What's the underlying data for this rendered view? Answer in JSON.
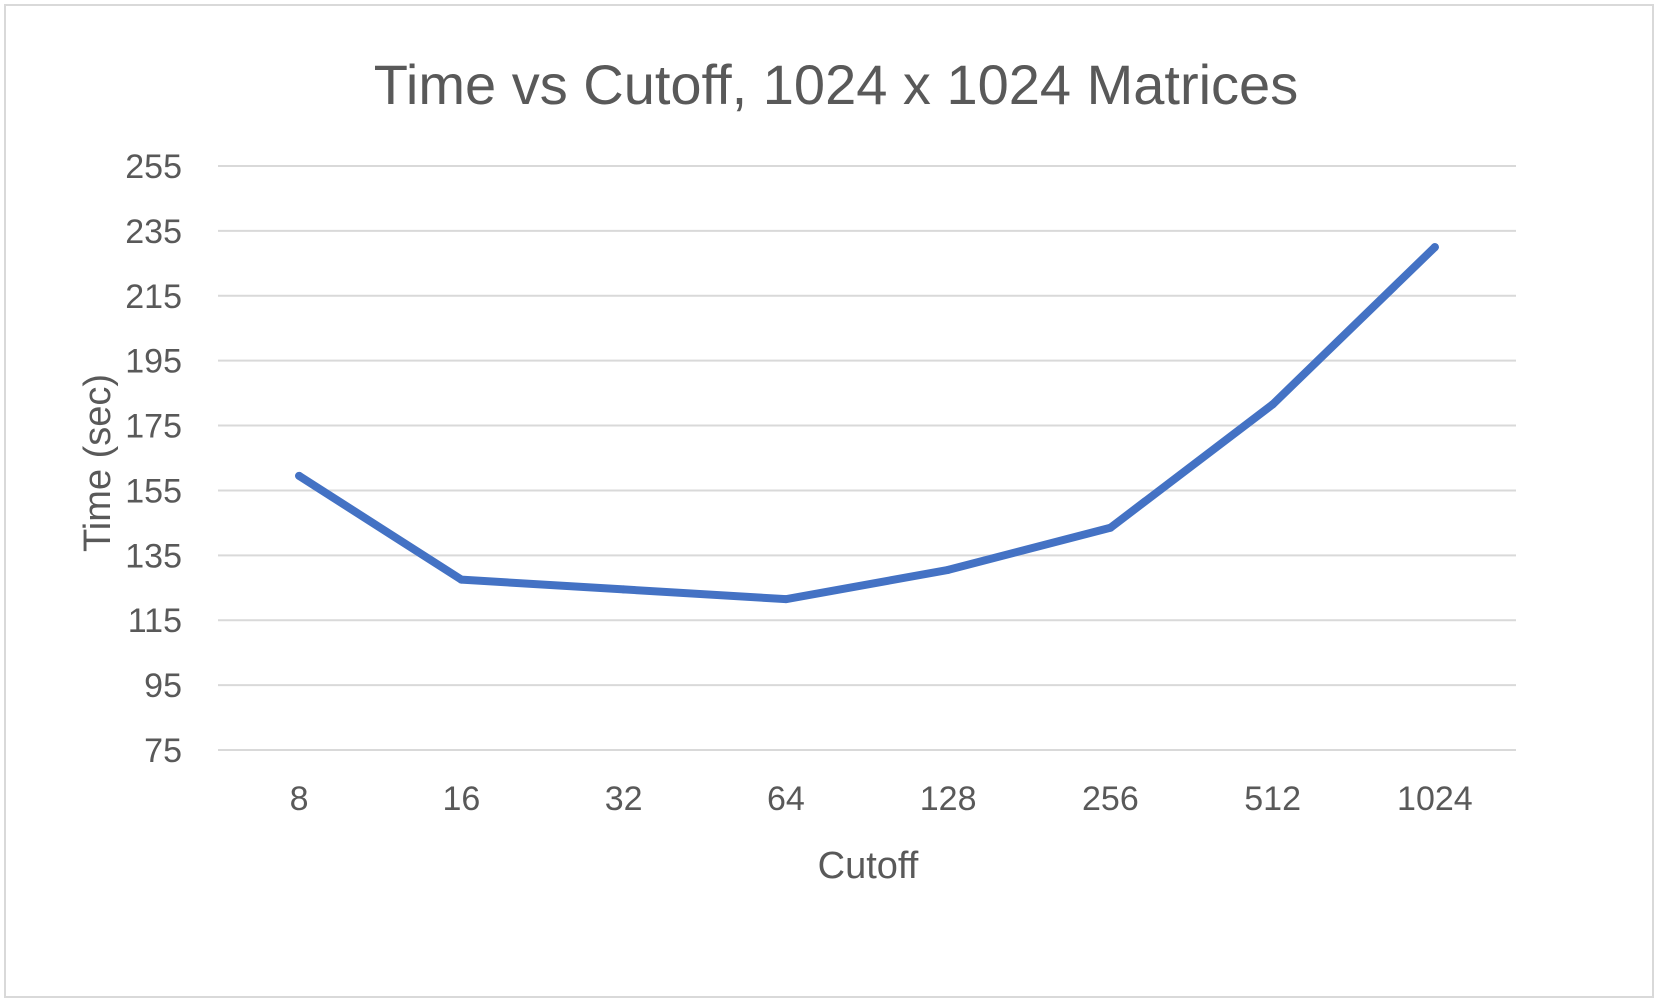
{
  "chart_data": {
    "type": "line",
    "title": "Time vs Cutoff, 1024 x 1024 Matrices",
    "xlabel": "Cutoff",
    "ylabel": "Time (sec)",
    "categories": [
      "8",
      "16",
      "32",
      "64",
      "128",
      "256",
      "512",
      "1024"
    ],
    "series": [
      {
        "values": [
          159.5,
          127.5,
          124.5,
          121.5,
          130.5,
          143.5,
          181.5,
          230
        ]
      }
    ],
    "ylim": [
      75,
      255
    ],
    "yticks": [
      "255",
      "235",
      "215",
      "195",
      "175",
      "155",
      "135",
      "115",
      "95",
      "75"
    ],
    "grid": true,
    "legend": "none",
    "colors": {
      "line": "#4472c4",
      "grid": "#d9d9d9",
      "text": "#595959"
    }
  }
}
